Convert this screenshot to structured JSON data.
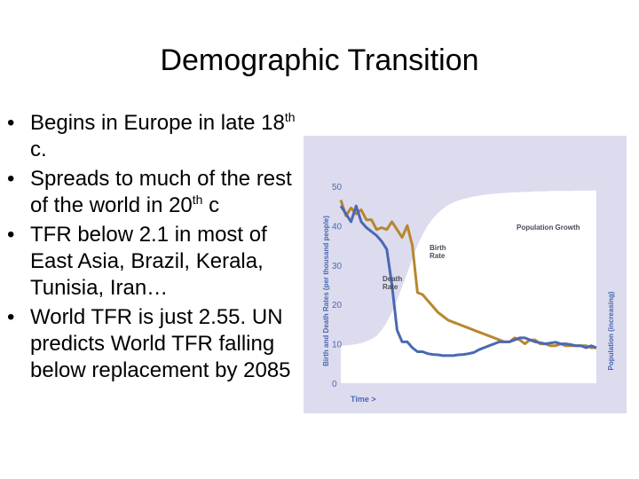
{
  "slide": {
    "title": "Demographic Transition",
    "bullets": [
      {
        "segments": [
          {
            "t": "Begins in Europe in late 18"
          },
          {
            "t": "th",
            "sup": true
          },
          {
            "t": " c."
          }
        ]
      },
      {
        "segments": [
          {
            "t": "Spreads to much of the rest of the world in 20"
          },
          {
            "t": "th",
            "sup": true
          },
          {
            "t": " c"
          }
        ]
      },
      {
        "segments": [
          {
            "t": "TFR below 2.1 in most of East Asia, Brazil, Kerala, Tunisia, Iran…"
          }
        ]
      },
      {
        "segments": [
          {
            "t": "World TFR is just 2.55. UN predicts World TFR falling below replacement by 2085"
          }
        ]
      }
    ],
    "bullet_glyph": "•"
  },
  "chart_data": {
    "type": "line",
    "ylabel": "Birth and Death Rates (per thousand people)",
    "y2label": "Population (increasing)",
    "xlabel": "Time >",
    "ylim": [
      0,
      50
    ],
    "yticks": [
      0,
      10,
      20,
      30,
      40,
      50
    ],
    "x": [
      0,
      2,
      4,
      6,
      8,
      10,
      12,
      14,
      16,
      18,
      20,
      22,
      24,
      26,
      28,
      30,
      32,
      34,
      36,
      38,
      40,
      42,
      44,
      46,
      48,
      50,
      52,
      54,
      56,
      58,
      60,
      62,
      64,
      66,
      68,
      70,
      72,
      74,
      76,
      78,
      80,
      82,
      84,
      86,
      88,
      90,
      92,
      94,
      96,
      98,
      100
    ],
    "series": [
      {
        "name": "Birth Rate",
        "color": "#b8862e",
        "values": [
          46.5,
          42.5,
          44.5,
          43,
          44,
          41.5,
          41.5,
          39,
          39.5,
          39,
          41,
          39,
          37,
          40,
          35,
          23,
          22.5,
          21,
          19.5,
          18,
          17,
          16,
          15.5,
          15,
          14.5,
          14,
          13.5,
          13,
          12.5,
          12,
          11.5,
          11,
          10.5,
          10.5,
          11.5,
          11,
          10,
          11,
          11,
          10,
          10,
          9.5,
          9.5,
          10,
          9.5,
          9.5,
          9.5,
          9.5,
          9.5,
          9,
          9
        ]
      },
      {
        "name": "Death Rate",
        "color": "#4a68b3",
        "values": [
          45,
          43,
          41,
          45,
          41,
          39.5,
          38.5,
          37.5,
          36,
          34,
          25,
          13.5,
          10.5,
          10.5,
          9,
          8,
          8,
          7.5,
          7.3,
          7.2,
          7,
          7,
          7,
          7.2,
          7.3,
          7.5,
          7.8,
          8.5,
          9,
          9.5,
          10,
          10.5,
          10.5,
          10.5,
          11,
          11.5,
          11.5,
          11,
          10.5,
          10.3,
          10,
          10.2,
          10.4,
          10,
          10,
          9.8,
          9.5,
          9.5,
          9,
          9.5,
          9
        ]
      },
      {
        "name": "Population Growth",
        "color": "#ffffff",
        "values": [
          9.5,
          9.6,
          9.7,
          9.9,
          10.2,
          10.6,
          11.2,
          12,
          13.5,
          15.5,
          18,
          21,
          24.5,
          28,
          31.5,
          35,
          37.8,
          40,
          41.8,
          43.2,
          44.3,
          45.2,
          45.9,
          46.4,
          46.8,
          47.1,
          47.4,
          47.6,
          47.8,
          48,
          48.1,
          48.2,
          48.3,
          48.4,
          48.5,
          48.5,
          48.6,
          48.6,
          48.7,
          48.7,
          48.7,
          48.8,
          48.8,
          48.8,
          48.8,
          48.8,
          48.9,
          48.9,
          48.9,
          48.9,
          48.9
        ]
      }
    ],
    "labels": {
      "population_growth": "Population Growth",
      "birth_rate": [
        "Birth",
        "Rate"
      ],
      "death_rate": [
        "Death",
        "Rate"
      ]
    },
    "colors": {
      "background": "#dcdcee",
      "axis_text": "#4a68b3",
      "population_area": "#ffffff",
      "label_text": "#4a4a5a"
    },
    "grid": false,
    "legend": "none"
  }
}
